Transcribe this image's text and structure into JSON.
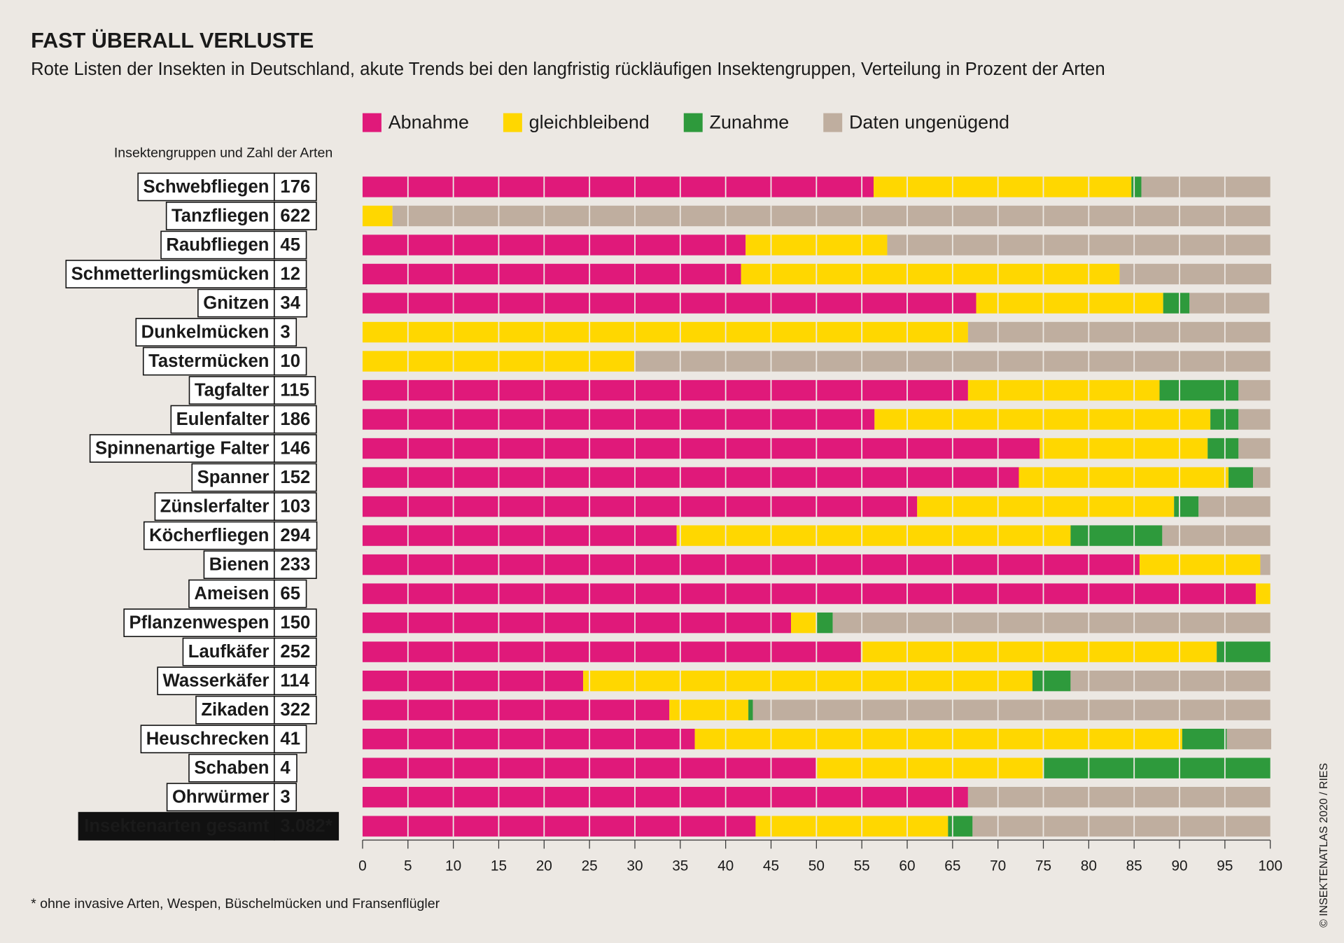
{
  "chart_data": {
    "type": "stacked-barh",
    "title": "FAST ÜBERALL VERLUSTE",
    "subtitle": "Rote Listen der Insekten in Deutschland, akute Trends bei den langfristig rückläufigen Insektengruppen, Verteilung in Prozent der Arten",
    "label_header": "Insektengruppen und Zahl der Arten",
    "footnote": "* ohne invasive Arten, Wespen, Büschelmücken und Fransenflügler",
    "credit": "© INSEKTENATLAS 2020 / RIES",
    "categories": [
      "Schwebfliegen",
      "Tanzfliegen",
      "Raubfliegen",
      "Schmetterlingsmücken",
      "Gnitzen",
      "Dunkelmücken",
      "Tastermücken",
      "Tagfalter",
      "Eulenfalter",
      "Spinnenartige Falter",
      "Spanner",
      "Zünslerfalter",
      "Köcherfliegen",
      "Bienen",
      "Ameisen",
      "Pflanzenwespen",
      "Laufkäfer",
      "Wasserkäfer",
      "Zikaden",
      "Heuschrecken",
      "Schaben",
      "Ohrwürmer",
      "Insektenarten gesamt"
    ],
    "counts": [
      176,
      622,
      45,
      12,
      34,
      3,
      10,
      115,
      186,
      146,
      152,
      103,
      294,
      233,
      65,
      150,
      252,
      114,
      322,
      41,
      4,
      3,
      {
        "value": 3082,
        "label": "3.082*"
      }
    ],
    "series": [
      {
        "name": "Abnahme",
        "color": "#e0197a",
        "values": [
          56.3,
          0,
          42.2,
          41.7,
          67.6,
          0,
          0,
          66.7,
          56.4,
          74.6,
          72.3,
          61.1,
          34.6,
          85.6,
          98.4,
          47.2,
          54.9,
          24.3,
          33.8,
          36.6,
          50,
          66.7,
          43.3
        ]
      },
      {
        "name": "gleichbleibend",
        "color": "#ffd700",
        "values": [
          28.4,
          3.3,
          15.6,
          41.7,
          20.6,
          66.7,
          30,
          21.1,
          37.0,
          18.5,
          23.1,
          28.3,
          43.4,
          13.3,
          1.6,
          2.8,
          39.2,
          49.5,
          8.7,
          53.7,
          25,
          0,
          21.2
        ]
      },
      {
        "name": "Zunahme",
        "color": "#2e9a3c",
        "values": [
          1.1,
          0,
          0,
          0,
          2.9,
          0,
          0,
          8.7,
          3.1,
          3.4,
          2.7,
          2.7,
          10.1,
          0,
          0,
          1.8,
          5.9,
          4.2,
          0.5,
          4.9,
          25,
          0,
          2.7
        ]
      },
      {
        "name": "Daten ungenügend",
        "color": "#bfae9f",
        "values": [
          14.2,
          96.7,
          42.2,
          16.7,
          8.8,
          33.3,
          70,
          3.5,
          3.5,
          3.5,
          1.9,
          7.9,
          11.9,
          1.1,
          0,
          48.2,
          0,
          22.0,
          57.0,
          4.9,
          0,
          33.3,
          32.8
        ]
      }
    ],
    "xlim": [
      0,
      100
    ],
    "xticks": [
      0,
      5,
      10,
      15,
      20,
      25,
      30,
      35,
      40,
      45,
      50,
      55,
      60,
      65,
      70,
      75,
      80,
      85,
      90,
      95,
      100
    ],
    "grid": true
  }
}
